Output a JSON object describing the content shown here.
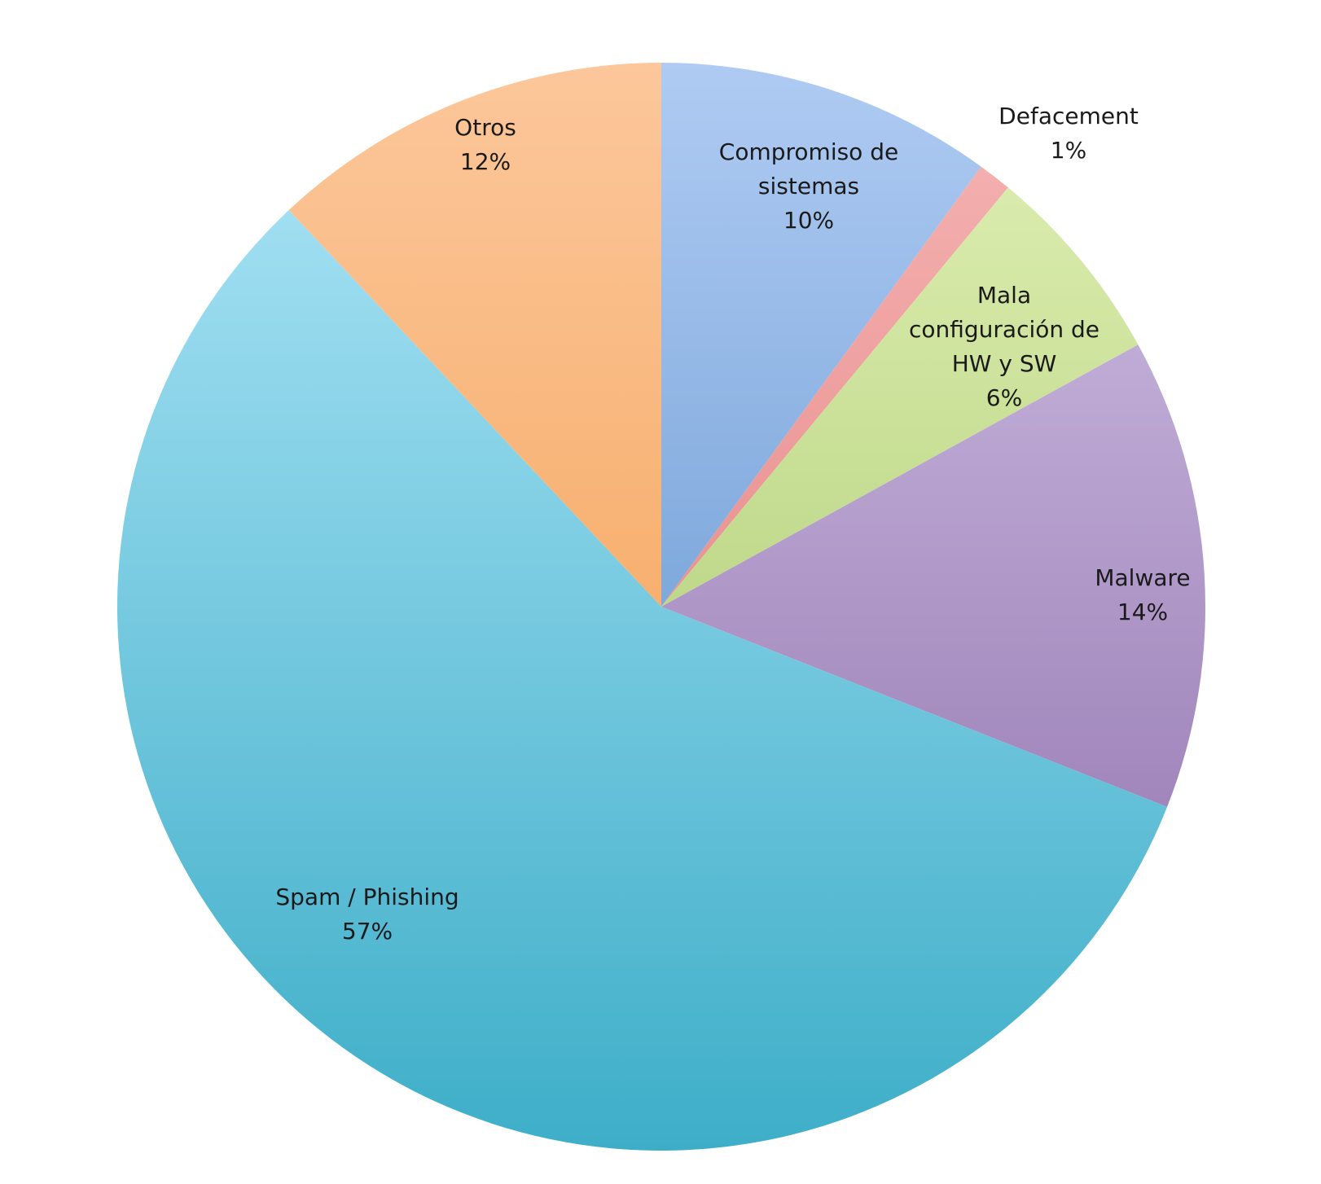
{
  "chart_data": {
    "type": "pie",
    "title": "",
    "legend": "none",
    "start_angle_deg": 0,
    "direction": "clockwise",
    "slices": [
      {
        "name": "Compromiso de sistemas",
        "label_lines": [
          "Compromiso de",
          "sistemas",
          "10%"
        ],
        "value": 10,
        "color_top": "#afcbf3",
        "color_bottom": "#4e86c4"
      },
      {
        "name": "Defacement",
        "label_lines": [
          "Defacement",
          "1%"
        ],
        "value": 1,
        "color_top": "#f6b5b5",
        "color_bottom": "#db706d"
      },
      {
        "name": "Mala configuración de HW y SW",
        "label_lines": [
          "Mala",
          "configuración de",
          "HW y SW",
          "6%"
        ],
        "value": 6,
        "color_top": "#e2f1b7",
        "color_bottom": "#9bc05d"
      },
      {
        "name": "Malware",
        "label_lines": [
          "Malware",
          "14%"
        ],
        "value": 14,
        "color_top": "#d2c4e6",
        "color_bottom": "#8a69a8"
      },
      {
        "name": "Spam / Phishing",
        "label_lines": [
          "Spam / Phishing",
          "57%"
        ],
        "value": 57,
        "color_top": "#b0e6f8",
        "color_bottom": "#3eaec8"
      },
      {
        "name": "Otros",
        "label_lines": [
          "Otros",
          "12%"
        ],
        "value": 12,
        "color_top": "#fcc79b",
        "color_bottom": "#f29843"
      }
    ]
  }
}
